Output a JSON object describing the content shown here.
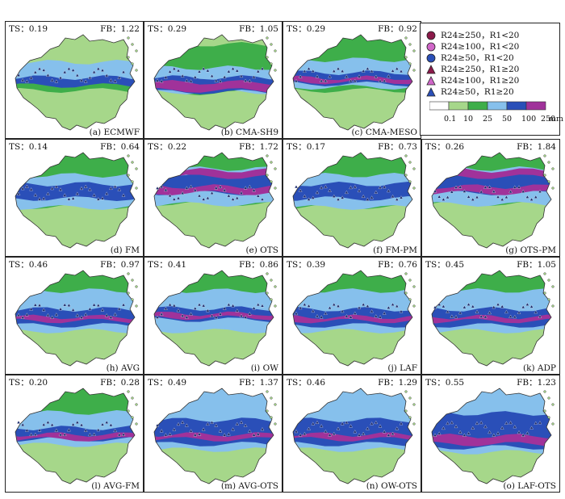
{
  "panels": [
    {
      "label": "(a) ECMWF",
      "ts": "TS：0.19",
      "fb": "FB：1.22",
      "style": "ecmwf"
    },
    {
      "label": "(b) CMA-SH9",
      "ts": "TS：0.29",
      "fb": "FB：1.05",
      "style": "sh9"
    },
    {
      "label": "(c) CMA-MESO",
      "ts": "TS：0.29",
      "fb": "FB：0.92",
      "style": "meso"
    },
    {
      "label": "(d) FM",
      "ts": "TS：0.14",
      "fb": "FB：0.64",
      "style": "fm"
    },
    {
      "label": "(e) OTS",
      "ts": "TS：0.22",
      "fb": "FB：1.72",
      "style": "ots"
    },
    {
      "label": "(f) FM-PM",
      "ts": "TS：0.17",
      "fb": "FB：0.73",
      "style": "fm"
    },
    {
      "label": "(g) OTS-PM",
      "ts": "TS：0.26",
      "fb": "FB：1.84",
      "style": "ots"
    },
    {
      "label": "(h) AVG",
      "ts": "TS：0.46",
      "fb": "FB：0.97",
      "style": "avg"
    },
    {
      "label": "(i) OW",
      "ts": "TS：0.41",
      "fb": "FB：0.86",
      "style": "ow"
    },
    {
      "label": "(j) LAF",
      "ts": "TS：0.39",
      "fb": "FB：0.76",
      "style": "avg"
    },
    {
      "label": "(k) ADP",
      "ts": "TS：0.45",
      "fb": "FB：1.05",
      "style": "avg"
    },
    {
      "label": "(l) AVG-FM",
      "ts": "TS：0.20",
      "fb": "FB：0.28",
      "style": "avgfm"
    },
    {
      "label": "(m) AVG-OTS",
      "ts": "TS：0.49",
      "fb": "FB：1.37",
      "style": "avgots"
    },
    {
      "label": "(n) OW-OTS",
      "ts": "TS：0.46",
      "fb": "FB：1.29",
      "style": "avgots"
    },
    {
      "label": "(o) LAF-OTS",
      "ts": "TS：0.55",
      "fb": "FB：1.23",
      "style": "lafots"
    }
  ],
  "legend": {
    "symbols": [
      {
        "shape": "circle",
        "color": "#8b1a4a",
        "text": "R24≥250，R1<20"
      },
      {
        "shape": "circle",
        "color": "#d066c8",
        "text": "R24≥100，R1<20"
      },
      {
        "shape": "circle",
        "color": "#2a4fb8",
        "text": "R24≥50，R1<20"
      },
      {
        "shape": "triangle",
        "color": "#8b1a4a",
        "text": "R24≥250，R1≥20"
      },
      {
        "shape": "triangle",
        "color": "#d066c8",
        "text": "R24≥100，R1≥20"
      },
      {
        "shape": "triangle",
        "color": "#2a4fb8",
        "text": "R24≥50，R1≥20"
      }
    ],
    "colorbar": {
      "ticks": [
        "0.1",
        "10",
        "25",
        "50",
        "100",
        "250"
      ],
      "unit": "mm",
      "colors": [
        "#ffffff",
        "#a6d78a",
        "#3eae4a",
        "#86c0ec",
        "#2a4fb8",
        "#a0329a"
      ]
    }
  }
}
